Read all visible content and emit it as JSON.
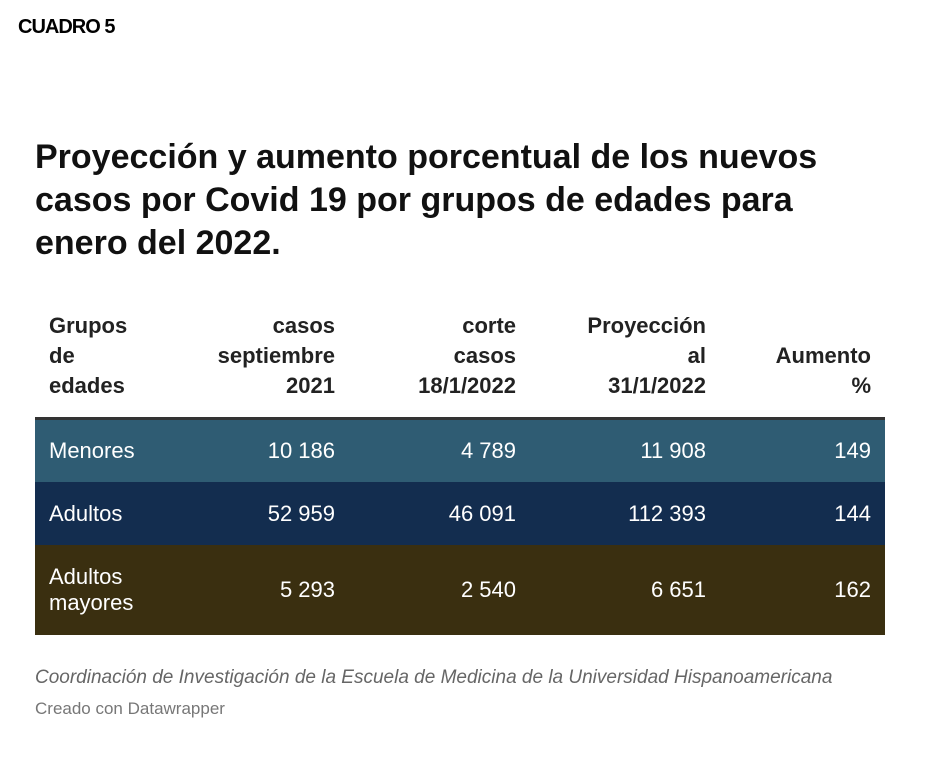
{
  "label": "CUADRO 5",
  "title": "Proyección y aumento porcentual de los nuevos casos por Covid 19 por grupos de edades para enero del 2022.",
  "source": "Coordinación de Investigación de la Escuela de Medicina de la Universidad Hispanoamericana",
  "credit": "Creado con Datawrapper",
  "row_colors": [
    "#2f5c73",
    "#132d4f",
    "#3a2f10"
  ],
  "chart_data": {
    "type": "table",
    "columns": [
      [
        "Grupos",
        "de",
        "edades"
      ],
      [
        "casos",
        "septiembre",
        "2021"
      ],
      [
        "corte",
        "casos",
        "18/1/2022"
      ],
      [
        "Proyección",
        "al",
        "31/1/2022"
      ],
      [
        "Aumento",
        "%"
      ]
    ],
    "rows": [
      {
        "group": [
          "Menores"
        ],
        "cells": [
          "10 186",
          "4 789",
          "11 908",
          "149"
        ]
      },
      {
        "group": [
          "Adultos"
        ],
        "cells": [
          "52 959",
          "46 091",
          "112 393",
          "144"
        ]
      },
      {
        "group": [
          "Adultos",
          "mayores"
        ],
        "cells": [
          "5 293",
          "2 540",
          "6 651",
          "162"
        ]
      }
    ]
  }
}
